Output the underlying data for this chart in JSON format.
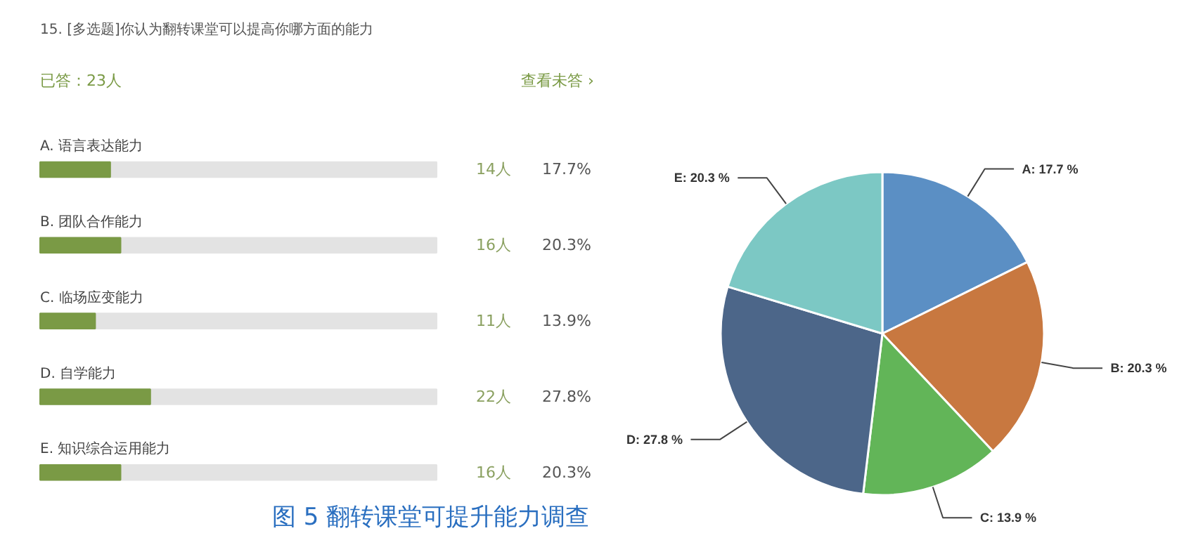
{
  "chart_data": [
    {
      "type": "bar",
      "orientation": "horizontal",
      "title": "15. [多选题]你认为翻转课堂可以提高你哪方面的能力",
      "subtitle": "已答：23人",
      "categories": [
        "A. 语言表达能力",
        "B. 团队合作能力",
        "C. 临场应变能力",
        "D. 自学能力",
        "E. 知识综合运用能力"
      ],
      "values": [
        17.7,
        20.3,
        13.9,
        27.8,
        20.3
      ],
      "color": "#7a9a45",
      "value_labels": [
        "17.7%",
        "20.3%",
        "13.9%",
        "27.8%",
        "20.3%"
      ],
      "xlim": [
        0,
        100
      ],
      "tick_labels": false,
      "annotations": [
        "14人",
        "16人",
        "11人",
        "22人",
        "16人",
        "查看未答 ›",
        "图 5 翻转课堂可提升能力调查"
      ]
    },
    {
      "type": "pie",
      "categories": [
        "A",
        "B",
        "C",
        "D",
        "E"
      ],
      "values": [
        17.7,
        20.3,
        13.9,
        27.8,
        20.3
      ],
      "colors": [
        "#5b8fc4",
        "#c87840",
        "#62b558",
        "#4c6689",
        "#7cc8c4"
      ],
      "value_labels": [
        "17.7 %",
        "20.3 %",
        "13.9 %",
        "27.8 %",
        "20.3 %"
      ]
    }
  ]
}
